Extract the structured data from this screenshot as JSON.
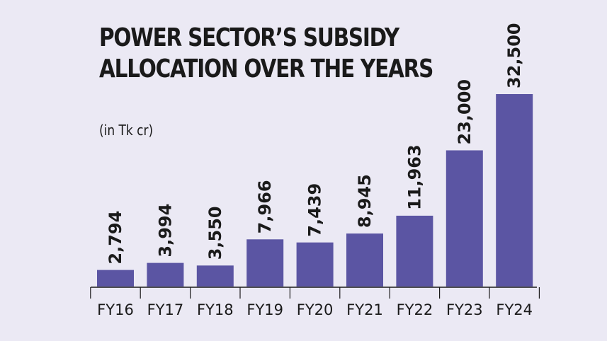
{
  "chart_data": {
    "type": "bar",
    "title": "POWER SECTOR’S SUBSIDY ALLOCATION OVER THE YEARS",
    "subtitle": "(in Tk cr)",
    "categories": [
      "FY16",
      "FY17",
      "FY18",
      "FY19",
      "FY20",
      "FY21",
      "FY22",
      "FY23",
      "FY24"
    ],
    "values": [
      2794,
      3994,
      3550,
      7966,
      7439,
      8945,
      11963,
      23000,
      32500
    ],
    "value_labels": [
      "2,794",
      "3,994",
      "3,550",
      "7,966",
      "7,439",
      "8,945",
      "11,963",
      "23,000",
      "32,500"
    ],
    "xlabel": "",
    "ylabel": "",
    "ylim": [
      0,
      32500
    ],
    "grid": false,
    "bar_color": "#5b55a3"
  }
}
